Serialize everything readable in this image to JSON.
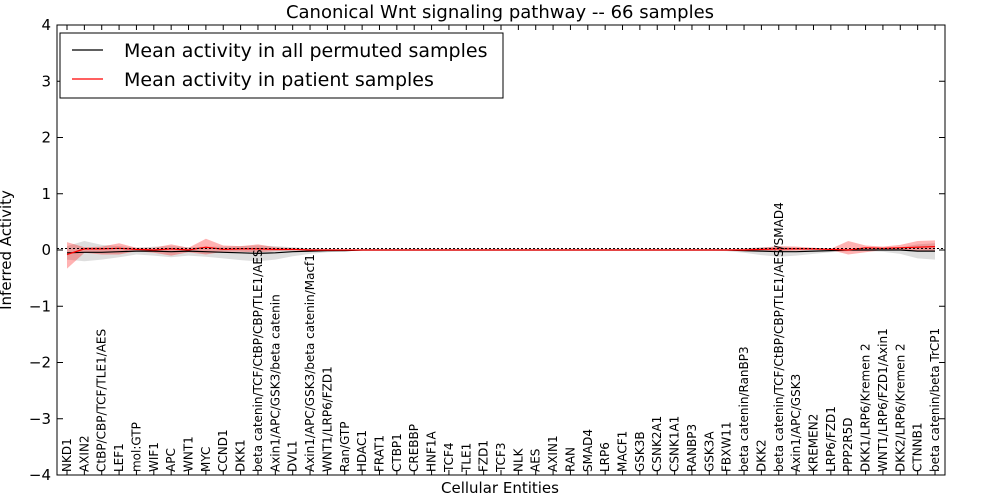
{
  "chart_data": {
    "type": "line",
    "title": "Canonical Wnt signaling pathway -- 66 samples",
    "xlabel": "Cellular Entities",
    "ylabel": "Inferred Activity",
    "ylim": [
      -4,
      4
    ],
    "yticks": [
      -4,
      -3,
      -2,
      -1,
      0,
      1,
      2,
      3,
      4
    ],
    "ytick_labels": [
      "−4",
      "−3",
      "−2",
      "−1",
      "0",
      "1",
      "2",
      "3",
      "4"
    ],
    "legend_position": "top-left",
    "categories": [
      "NKD1",
      "AXIN2",
      "CtBP/CBP/TCF/TLE1/AES",
      "LEF1",
      "mol:GTP",
      "WIF1",
      "APC",
      "WNT1",
      "MYC",
      "CCND1",
      "DKK1",
      "beta catenin/TCF/CtBP/CBP/TLE1/AES",
      "Axin1/APC/GSK3/beta catenin",
      "DVL1",
      "Axin1/APC/GSK3/beta catenin/Macf1",
      "WNT1/LRP6/FZD1",
      "Ran/GTP",
      "HDAC1",
      "FRAT1",
      "CTBP1",
      "CREBBP",
      "HNF1A",
      "TCF4",
      "TLE1",
      "FZD1",
      "TCF3",
      "NLK",
      "AES",
      "AXIN1",
      "RAN",
      "SMAD4",
      "LRP6",
      "MACF1",
      "GSK3B",
      "CSNK2A1",
      "CSNK1A1",
      "RANBP3",
      "GSK3A",
      "FBXW11",
      "beta catenin/RanBP3",
      "DKK2",
      "beta catenin/TCF/CtBP/CBP/TLE1/AES/SMAD4",
      "Axin1/APC/GSK3",
      "KREMEN2",
      "LRP6/FZD1",
      "PPP2R5D",
      "DKK1/LRP6/Kremen 2",
      "WNT1/LRP6/FZD1/Axin1",
      "DKK2/LRP6/Kremen 2",
      "CTNNB1",
      "beta catenin/beta TrCP1"
    ],
    "series": [
      {
        "name": "Mean activity in all permuted samples",
        "color": "#000000",
        "values": [
          -0.05,
          -0.04,
          -0.04,
          -0.03,
          -0.02,
          -0.02,
          -0.03,
          -0.02,
          -0.03,
          -0.04,
          -0.05,
          -0.06,
          -0.05,
          -0.03,
          -0.02,
          -0.01,
          -0.01,
          0,
          0,
          0,
          0,
          0,
          0,
          0,
          0,
          0,
          0,
          0,
          0,
          0,
          0,
          0,
          0,
          0,
          0,
          0,
          0,
          0,
          0,
          -0.01,
          -0.02,
          -0.03,
          -0.03,
          -0.02,
          -0.01,
          0,
          0,
          0,
          0,
          -0.02,
          -0.02
        ],
        "lower": [
          -0.17,
          -0.2,
          -0.17,
          -0.13,
          -0.08,
          -0.1,
          -0.13,
          -0.1,
          -0.12,
          -0.15,
          -0.18,
          -0.2,
          -0.17,
          -0.11,
          -0.07,
          -0.04,
          -0.02,
          -0.01,
          -0.01,
          -0.01,
          -0.01,
          -0.01,
          -0.01,
          -0.01,
          -0.01,
          -0.01,
          -0.01,
          -0.01,
          -0.01,
          -0.01,
          -0.01,
          -0.01,
          -0.01,
          -0.01,
          -0.01,
          -0.01,
          -0.01,
          -0.01,
          -0.02,
          -0.05,
          -0.09,
          -0.12,
          -0.1,
          -0.07,
          -0.04,
          -0.02,
          -0.02,
          -0.03,
          -0.07,
          -0.15,
          -0.17
        ],
        "upper": [
          0.07,
          0.16,
          0.09,
          0.07,
          0.04,
          0.06,
          0.07,
          0.05,
          0.06,
          0.06,
          0.07,
          0.08,
          0.07,
          0.05,
          0.03,
          0.02,
          0.01,
          0.01,
          0.01,
          0.01,
          0.01,
          0.01,
          0.01,
          0.01,
          0.01,
          0.01,
          0.01,
          0.01,
          0.01,
          0.01,
          0.01,
          0.01,
          0.01,
          0.01,
          0.01,
          0.01,
          0.01,
          0.01,
          0.01,
          0.03,
          0.05,
          0.06,
          0.04,
          0.03,
          0.02,
          0.02,
          0.02,
          0.03,
          0.05,
          0.1,
          0.12
        ]
      },
      {
        "name": "Mean activity in patient samples",
        "color": "#ff0000",
        "values": [
          -0.08,
          0.02,
          0.02,
          0.03,
          0.01,
          0,
          0.02,
          0,
          0.05,
          0.01,
          0.02,
          0.02,
          0.01,
          0.01,
          0,
          0,
          0,
          0,
          0,
          0,
          0,
          0,
          0,
          0,
          0,
          0,
          0,
          0,
          0,
          0,
          0,
          0,
          0,
          0,
          0,
          0,
          0,
          0,
          0,
          0,
          0.01,
          0.02,
          0.02,
          0.02,
          0.01,
          0,
          0.04,
          0.03,
          0.04,
          0.05,
          0.06
        ],
        "lower": [
          -0.33,
          -0.05,
          -0.08,
          -0.08,
          -0.02,
          -0.05,
          -0.1,
          -0.04,
          -0.08,
          -0.03,
          -0.03,
          -0.04,
          -0.02,
          -0.01,
          0,
          0,
          0,
          0,
          0,
          0,
          0,
          0,
          0,
          0,
          0,
          0,
          0,
          0,
          0,
          0,
          0,
          0,
          0,
          0,
          0,
          0,
          0,
          0,
          0,
          -0.01,
          -0.02,
          -0.02,
          -0.01,
          0,
          0,
          -0.08,
          -0.04,
          0,
          0,
          -0.02,
          -0.02
        ],
        "upper": [
          0.14,
          0.05,
          0.06,
          0.12,
          0.04,
          0.04,
          0.1,
          0.04,
          0.2,
          0.08,
          0.07,
          0.1,
          0.05,
          0.03,
          0.01,
          0.01,
          0,
          0,
          0,
          0,
          0,
          0,
          0,
          0,
          0,
          0,
          0,
          0,
          0,
          0,
          0,
          0,
          0,
          0,
          0,
          0,
          0,
          0,
          0.01,
          0.02,
          0.04,
          0.07,
          0.06,
          0.04,
          0.02,
          0.16,
          0.08,
          0.06,
          0.09,
          0.16,
          0.17
        ]
      }
    ]
  }
}
